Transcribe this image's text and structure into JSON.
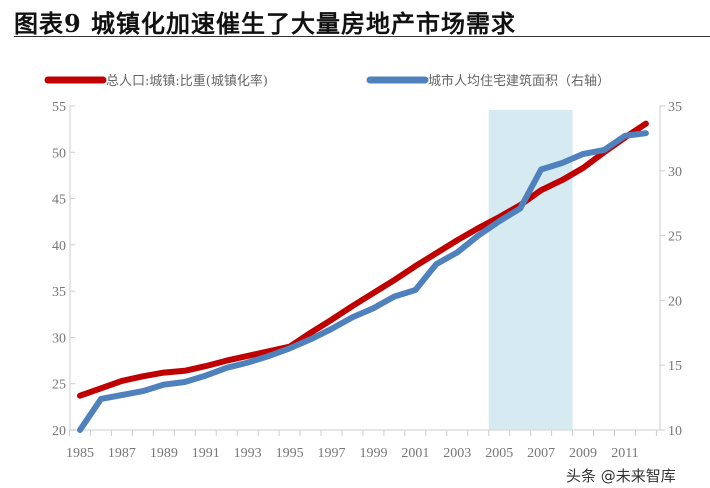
{
  "title": "图表9 城镇化加速催生了大量房地产市场需求",
  "watermark": "头条 @未来智库",
  "chart_data": {
    "type": "line",
    "title": "图表9 城镇化加速催生了大量房地产市场需求",
    "x": [
      1985,
      1986,
      1987,
      1988,
      1989,
      1990,
      1991,
      1992,
      1993,
      1994,
      1995,
      1996,
      1997,
      1998,
      1999,
      2000,
      2001,
      2002,
      2003,
      2004,
      2005,
      2006,
      2007,
      2008,
      2009,
      2010,
      2011,
      2012
    ],
    "x_tick_labels": [
      "1985",
      "1987",
      "1989",
      "1991",
      "1993",
      "1995",
      "1997",
      "1999",
      "2001",
      "2003",
      "2005",
      "2007",
      "2009",
      "2011"
    ],
    "ylim_left": [
      20,
      55
    ],
    "y_ticks_left": [
      "20",
      "25",
      "30",
      "35",
      "40",
      "45",
      "50",
      "55"
    ],
    "ylim_right": [
      10,
      35
    ],
    "y_ticks_right": [
      "10",
      "15",
      "20",
      "25",
      "30",
      "35"
    ],
    "shaded_x_range": [
      2004.5,
      2008.5
    ],
    "shade_color": "#d6ebf1",
    "legend_position": "top",
    "series": [
      {
        "name": "总人口:城镇:比重(城镇化率)",
        "axis": "left",
        "color": "#c00000",
        "values": [
          23.7,
          24.5,
          25.3,
          25.8,
          26.2,
          26.4,
          26.9,
          27.5,
          28.0,
          28.5,
          29.0,
          30.5,
          31.9,
          33.4,
          34.8,
          36.2,
          37.7,
          39.1,
          40.5,
          41.8,
          43.0,
          44.3,
          45.9,
          47.0,
          48.3,
          50.0,
          51.6,
          53.1
        ]
      },
      {
        "name": "城市人均住宅建筑面积（右轴）",
        "axis": "right",
        "color": "#4f81bd",
        "values": [
          10.0,
          12.4,
          12.7,
          13.0,
          13.5,
          13.7,
          14.2,
          14.8,
          15.2,
          15.7,
          16.3,
          17.0,
          17.8,
          18.7,
          19.4,
          20.3,
          20.8,
          22.8,
          23.7,
          25.0,
          26.1,
          27.1,
          30.1,
          30.6,
          31.3,
          31.6,
          32.7,
          32.9
        ]
      }
    ]
  }
}
